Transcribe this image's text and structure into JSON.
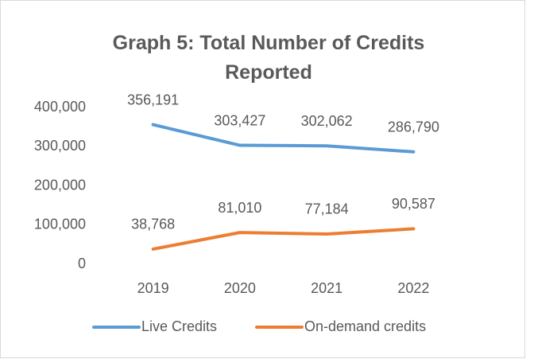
{
  "chart_data": {
    "type": "line",
    "title": "Graph 5: Total Number of Credits Reported",
    "categories": [
      "2019",
      "2020",
      "2021",
      "2022"
    ],
    "series": [
      {
        "name": "Live Credits",
        "color": "#5b9bd5",
        "values": [
          356191,
          303427,
          302062,
          286790
        ],
        "value_labels": [
          "356,191",
          "303,427",
          "302,062",
          "286,790"
        ]
      },
      {
        "name": "On-demand credits",
        "color": "#ed7d31",
        "values": [
          38768,
          81010,
          77184,
          90587
        ],
        "value_labels": [
          "38,768",
          "81,010",
          "77,184",
          "90,587"
        ]
      }
    ],
    "ylim": [
      0,
      400000
    ],
    "yticks": [
      0,
      {
        "value": 100000,
        "label": "100,000"
      },
      {
        "value": 200000,
        "label": "200,000"
      },
      {
        "value": 300000,
        "label": "300,000"
      },
      {
        "value": 400000,
        "label": "400,000"
      }
    ],
    "grid": false,
    "legend": "bottom"
  }
}
